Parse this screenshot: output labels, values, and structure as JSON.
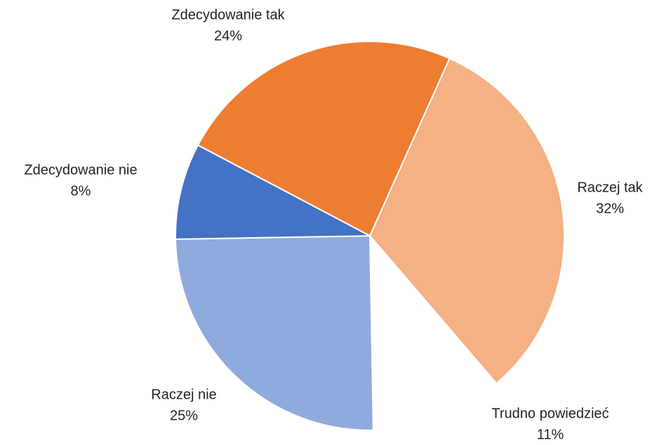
{
  "chart_data": {
    "type": "pie",
    "categories": [
      "Zdecydowanie tak",
      "Raczej tak",
      "Trudno powiedzieć",
      "Raczej nie",
      "Zdecydowanie nie"
    ],
    "values": [
      24,
      32,
      11,
      25,
      8
    ],
    "value_labels": [
      "24%",
      "32%",
      "11%",
      "25%",
      "8%"
    ],
    "colors": [
      "#ed7d31",
      "#f4b183",
      "#ffffff",
      "#8faadc",
      "#4472c4"
    ]
  }
}
